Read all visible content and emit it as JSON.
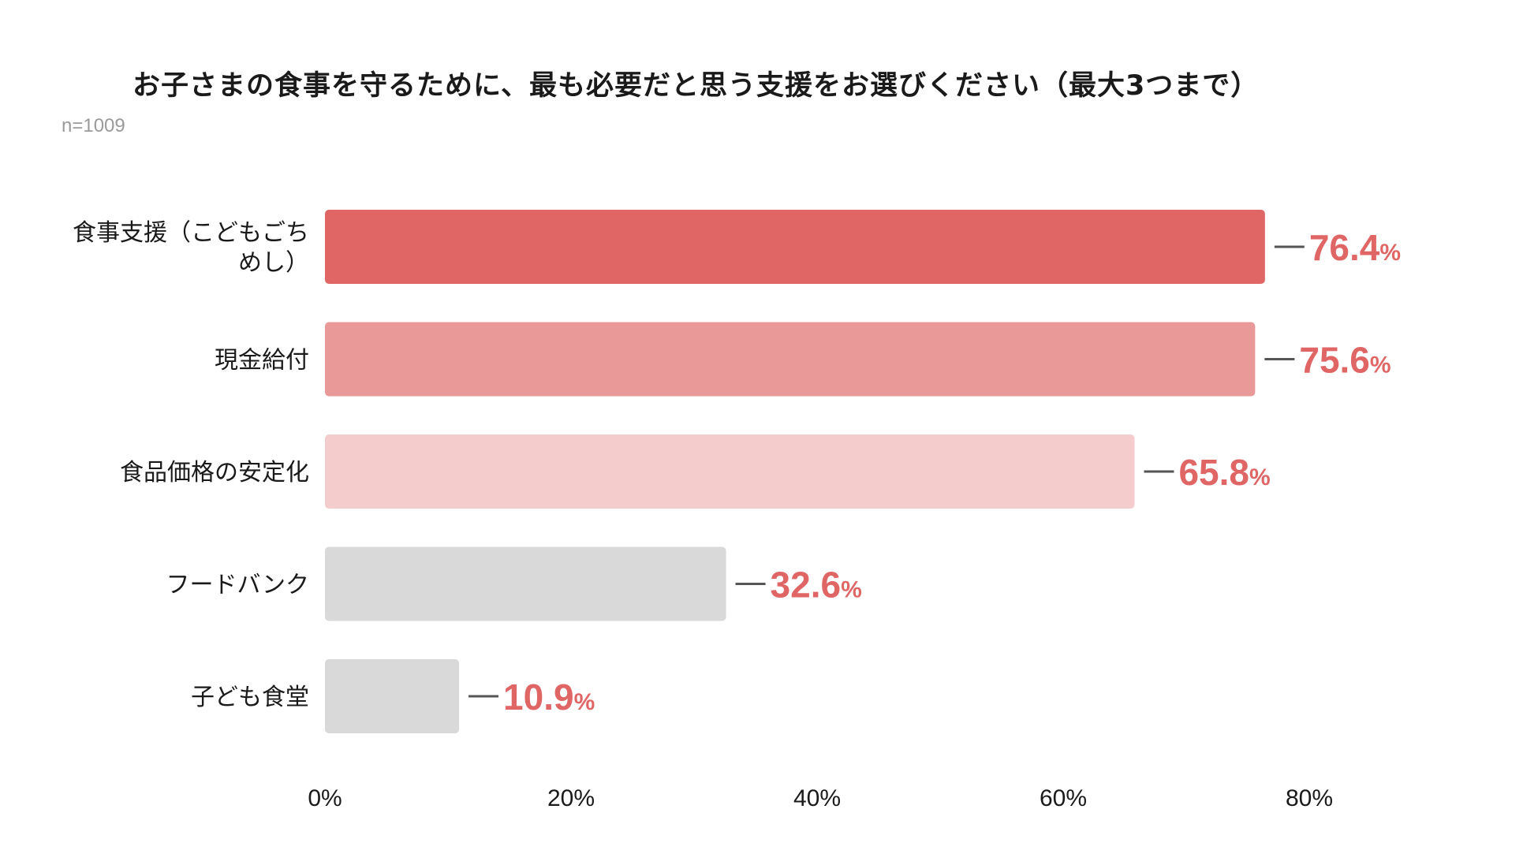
{
  "chart_data": {
    "type": "bar",
    "orientation": "horizontal",
    "title": "お子さまの食事を守るために、最も必要だと思う支援をお選びください（最大3つまで）",
    "subtitle": "n=1009",
    "categories": [
      "食事支援（こどもごちめし）",
      "現金給付",
      "食品価格の安定化",
      "フードバンク",
      "子ども食堂"
    ],
    "category_lines": [
      [
        "食事支援（こどもごち",
        "めし）"
      ],
      [
        "現金給付"
      ],
      [
        "食品価格の安定化"
      ],
      [
        "フードバンク"
      ],
      [
        "子ども食堂"
      ]
    ],
    "values": [
      76.4,
      75.6,
      65.8,
      32.6,
      10.9
    ],
    "value_labels": [
      "76.4",
      "75.6",
      "65.8",
      "32.6",
      "10.9"
    ],
    "value_unit": "%",
    "bar_colors": [
      "#e06666",
      "#ea9999",
      "#f4cccc",
      "#d9d9d9",
      "#d9d9d9"
    ],
    "label_color": "#e06666",
    "xlim": [
      0,
      80
    ],
    "xticks": [
      0,
      20,
      40,
      60,
      80
    ],
    "xtick_labels": [
      "0%",
      "20%",
      "40%",
      "60%",
      "80%"
    ],
    "grid": false,
    "legend": "none"
  }
}
